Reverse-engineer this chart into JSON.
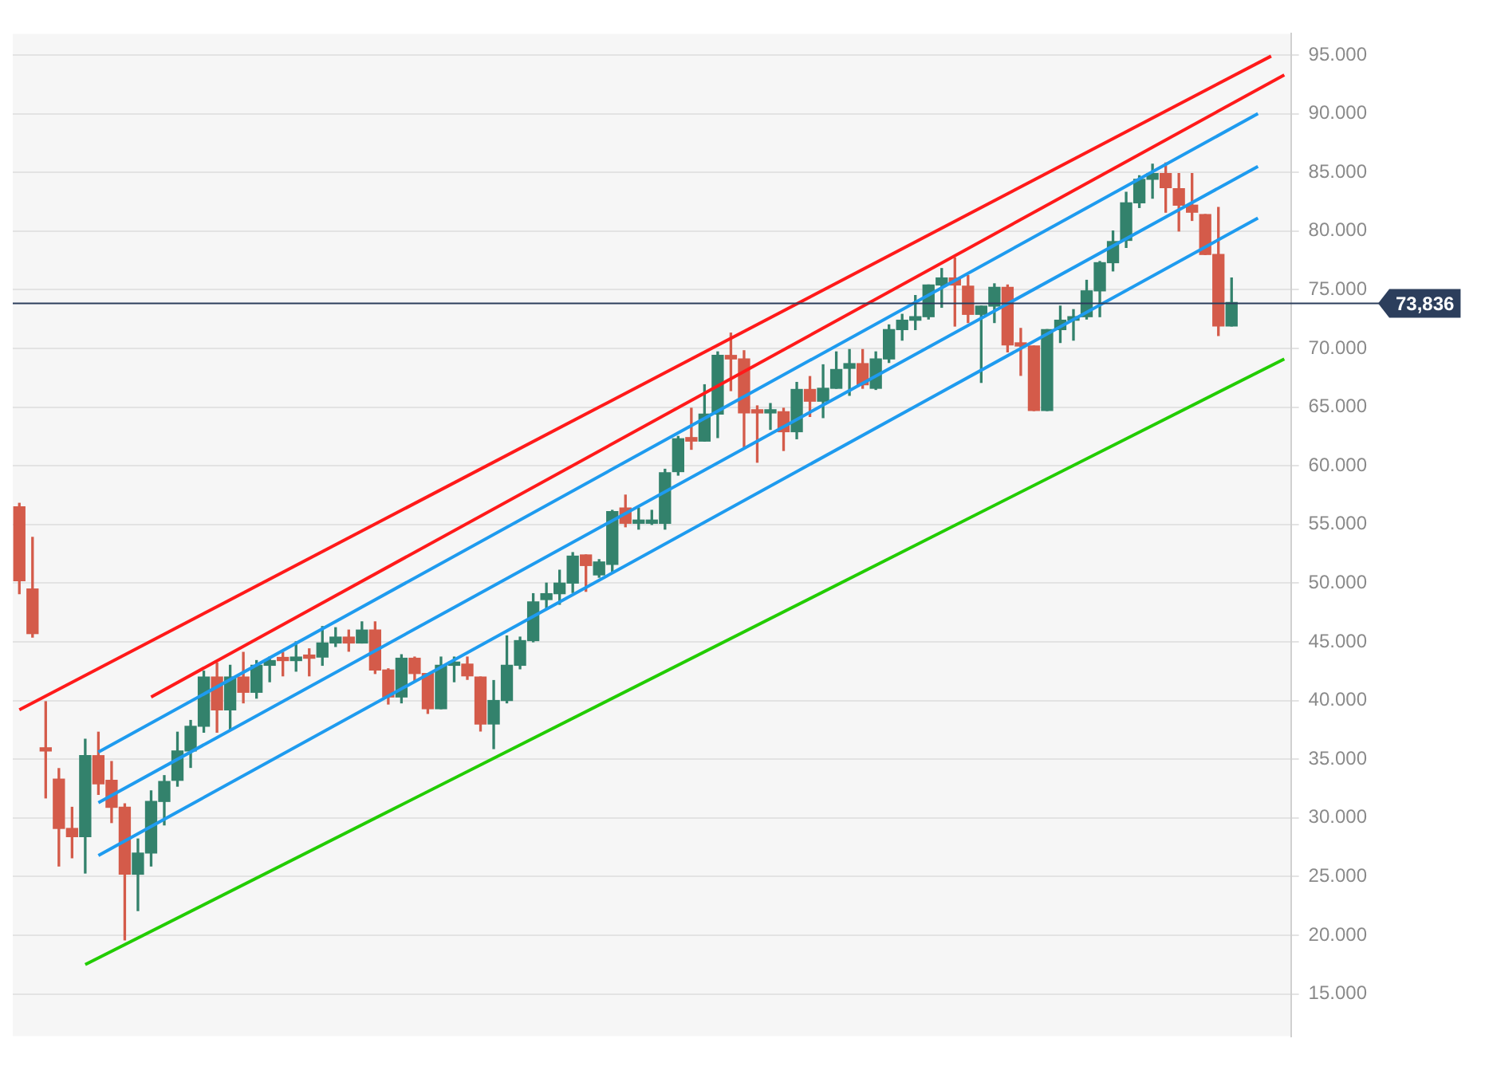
{
  "chart_data": {
    "type": "candlestick",
    "categories": [
      null,
      null,
      null,
      null,
      null,
      null,
      null,
      null,
      null,
      null,
      null,
      null,
      null,
      null,
      null,
      null,
      null,
      null,
      null,
      null,
      null,
      null,
      null,
      null,
      null,
      null,
      null,
      null,
      null,
      null,
      null,
      null,
      null,
      null,
      null,
      null,
      null,
      null,
      null,
      null,
      null,
      null,
      null,
      null,
      null,
      null,
      null,
      null,
      null,
      null,
      null,
      null,
      null,
      null,
      null,
      null,
      null,
      null,
      null,
      null,
      null,
      null,
      null,
      null,
      null,
      null,
      null,
      null,
      null,
      null,
      null,
      null,
      null,
      null,
      null,
      null,
      null,
      null,
      null,
      null,
      null,
      null,
      null,
      null,
      null,
      null,
      null,
      null,
      null,
      null,
      null,
      null,
      null,
      null,
      null,
      null,
      null
    ],
    "ohlc": [
      [
        56.5,
        56.8,
        49.1,
        50.2
      ],
      [
        49.5,
        53.9,
        45.4,
        45.7
      ],
      [
        35.9,
        39.9,
        31.7,
        35.7
      ],
      [
        33.3,
        34.2,
        25.9,
        29.1
      ],
      [
        29.1,
        30.9,
        26.6,
        28.4
      ],
      [
        28.4,
        36.7,
        25.3,
        35.3
      ],
      [
        35.3,
        37.3,
        32.0,
        32.9
      ],
      [
        33.2,
        34.8,
        29.6,
        30.9
      ],
      [
        30.9,
        31.2,
        19.6,
        25.2
      ],
      [
        25.2,
        28.2,
        22.1,
        27.0
      ],
      [
        27.0,
        32.3,
        25.9,
        31.4
      ],
      [
        31.4,
        33.6,
        29.4,
        33.1
      ],
      [
        33.2,
        37.3,
        32.7,
        35.7
      ],
      [
        35.7,
        38.3,
        34.3,
        37.8
      ],
      [
        37.8,
        42.5,
        37.3,
        42.0
      ],
      [
        42.0,
        43.2,
        37.3,
        39.2
      ],
      [
        39.2,
        43.0,
        37.5,
        42.0
      ],
      [
        42.0,
        44.1,
        39.8,
        40.7
      ],
      [
        40.7,
        43.4,
        40.2,
        43.0
      ],
      [
        43.0,
        43.7,
        41.6,
        43.4
      ],
      [
        43.5,
        44.1,
        42.1,
        43.4
      ],
      [
        43.4,
        45.0,
        42.5,
        43.7
      ],
      [
        43.7,
        44.4,
        42.1,
        43.6
      ],
      [
        43.7,
        46.3,
        43.0,
        44.9
      ],
      [
        44.9,
        46.2,
        44.6,
        45.4
      ],
      [
        45.4,
        46.0,
        44.2,
        44.9
      ],
      [
        44.9,
        46.7,
        44.9,
        46.0
      ],
      [
        46.0,
        46.7,
        42.3,
        42.6
      ],
      [
        42.6,
        42.7,
        39.7,
        40.3
      ],
      [
        40.3,
        43.9,
        39.8,
        43.6
      ],
      [
        43.6,
        43.7,
        41.7,
        42.3
      ],
      [
        42.3,
        42.3,
        38.9,
        39.3
      ],
      [
        39.3,
        43.7,
        39.3,
        43.0
      ],
      [
        43.0,
        43.7,
        41.6,
        43.1
      ],
      [
        43.1,
        43.7,
        41.8,
        42.1
      ],
      [
        42.0,
        42.0,
        37.4,
        38.0
      ],
      [
        38.0,
        41.7,
        35.9,
        40.0
      ],
      [
        40.0,
        45.5,
        39.8,
        43.0
      ],
      [
        43.0,
        45.4,
        42.7,
        45.1
      ],
      [
        45.1,
        49.1,
        45.0,
        48.4
      ],
      [
        48.6,
        50.0,
        47.9,
        49.1
      ],
      [
        49.1,
        51.1,
        48.2,
        50.0
      ],
      [
        50.0,
        52.6,
        49.2,
        52.3
      ],
      [
        52.4,
        52.4,
        49.3,
        51.5
      ],
      [
        50.7,
        52.0,
        50.5,
        51.8
      ],
      [
        51.6,
        56.2,
        51.0,
        56.1
      ],
      [
        56.4,
        57.5,
        54.8,
        55.1
      ],
      [
        55.1,
        56.4,
        54.6,
        55.3
      ],
      [
        55.1,
        56.2,
        55.0,
        55.2
      ],
      [
        55.1,
        59.7,
        54.6,
        59.4
      ],
      [
        59.5,
        62.5,
        59.2,
        62.3
      ],
      [
        62.4,
        64.9,
        61.4,
        62.1
      ],
      [
        62.1,
        66.9,
        62.1,
        64.4
      ],
      [
        64.4,
        69.7,
        62.4,
        69.4
      ],
      [
        69.4,
        71.3,
        66.4,
        69.1
      ],
      [
        69.1,
        69.8,
        61.6,
        64.5
      ],
      [
        64.6,
        65.1,
        60.3,
        64.5
      ],
      [
        64.5,
        65.3,
        63.1,
        64.6
      ],
      [
        64.6,
        64.9,
        61.3,
        62.9
      ],
      [
        62.9,
        67.1,
        62.3,
        66.5
      ],
      [
        66.5,
        67.6,
        64.2,
        65.5
      ],
      [
        65.5,
        68.6,
        64.1,
        66.6
      ],
      [
        66.6,
        69.7,
        66.6,
        68.2
      ],
      [
        68.3,
        69.9,
        66.0,
        68.7
      ],
      [
        68.7,
        69.9,
        66.6,
        66.9
      ],
      [
        66.6,
        69.7,
        66.5,
        69.1
      ],
      [
        69.1,
        72.0,
        68.8,
        71.6
      ],
      [
        71.6,
        72.9,
        70.7,
        72.4
      ],
      [
        72.4,
        74.5,
        71.6,
        72.7
      ],
      [
        72.7,
        75.4,
        72.5,
        75.4
      ],
      [
        75.4,
        76.8,
        73.5,
        76.0
      ],
      [
        76.0,
        77.7,
        71.9,
        75.4
      ],
      [
        75.3,
        76.2,
        72.2,
        72.9
      ],
      [
        72.9,
        73.6,
        67.1,
        73.6
      ],
      [
        73.6,
        75.5,
        72.2,
        75.2
      ],
      [
        75.2,
        75.4,
        69.7,
        70.3
      ],
      [
        70.3,
        71.7,
        67.7,
        70.2
      ],
      [
        70.2,
        70.2,
        64.7,
        64.7
      ],
      [
        64.7,
        71.6,
        64.7,
        71.6
      ],
      [
        71.6,
        73.6,
        70.5,
        72.4
      ],
      [
        72.4,
        73.3,
        70.7,
        72.7
      ],
      [
        72.7,
        75.8,
        72.5,
        74.9
      ],
      [
        74.9,
        77.4,
        72.7,
        77.3
      ],
      [
        77.3,
        80.0,
        76.6,
        79.1
      ],
      [
        79.2,
        83.3,
        78.6,
        82.4
      ],
      [
        82.4,
        84.7,
        82.0,
        84.4
      ],
      [
        84.4,
        85.7,
        82.8,
        84.9
      ],
      [
        84.9,
        85.8,
        81.6,
        83.7
      ],
      [
        83.6,
        84.9,
        80.0,
        82.2
      ],
      [
        82.2,
        84.9,
        80.9,
        81.6
      ],
      [
        81.4,
        81.4,
        78.0,
        78.0
      ],
      [
        78.0,
        82.0,
        71.1,
        71.9
      ],
      [
        71.9,
        76.0,
        71.9,
        73.9
      ],
      null,
      null,
      null,
      null
    ],
    "colors": [
      "#d45b4a",
      "#d45b4a",
      "#d45b4a",
      "#d45b4a",
      "#d45b4a",
      "#33826c",
      "#d45b4a",
      "#d45b4a",
      "#d45b4a",
      "#33826c",
      "#33826c",
      "#33826c",
      "#33826c",
      "#33826c",
      "#33826c",
      "#d45b4a",
      "#33826c",
      "#d45b4a",
      "#33826c",
      "#33826c",
      "#d45b4a",
      "#33826c",
      "#d45b4a",
      "#33826c",
      "#33826c",
      "#d45b4a",
      "#33826c",
      "#d45b4a",
      "#d45b4a",
      "#33826c",
      "#d45b4a",
      "#d45b4a",
      "#33826c",
      "#33826c",
      "#d45b4a",
      "#d45b4a",
      "#33826c",
      "#33826c",
      "#33826c",
      "#33826c",
      "#33826c",
      "#33826c",
      "#33826c",
      "#d45b4a",
      "#33826c",
      "#33826c",
      "#d45b4a",
      "#33826c",
      "#33826c",
      "#33826c",
      "#33826c",
      "#d45b4a",
      "#33826c",
      "#33826c",
      "#d45b4a",
      "#d45b4a",
      "#d45b4a",
      "#33826c",
      "#d45b4a",
      "#33826c",
      "#d45b4a",
      "#33826c",
      "#33826c",
      "#33826c",
      "#d45b4a",
      "#33826c",
      "#33826c",
      "#33826c",
      "#33826c",
      "#33826c",
      "#33826c",
      "#d45b4a",
      "#d45b4a",
      "#33826c",
      "#33826c",
      "#d45b4a",
      "#d45b4a",
      "#d45b4a",
      "#33826c",
      "#33826c",
      "#33826c",
      "#33826c",
      "#33826c",
      "#33826c",
      "#33826c",
      "#33826c",
      "#33826c",
      "#d45b4a",
      "#d45b4a",
      "#d45b4a",
      "#d45b4a",
      "#d45b4a",
      "#33826c",
      null,
      null,
      null,
      null
    ],
    "series": [
      {
        "type": "line",
        "color": "#ff1a1a",
        "values": [
          39.2,
          null,
          null,
          null,
          null,
          null,
          null,
          null,
          null,
          null,
          null,
          null,
          null,
          null,
          null,
          null,
          null,
          null,
          null,
          null,
          null,
          null,
          null,
          null,
          null,
          null,
          null,
          null,
          null,
          null,
          null,
          null,
          null,
          null,
          null,
          null,
          null,
          null,
          null,
          null,
          null,
          null,
          null,
          null,
          null,
          null,
          null,
          null,
          null,
          null,
          null,
          null,
          null,
          null,
          null,
          null,
          null,
          null,
          null,
          null,
          null,
          null,
          null,
          null,
          null,
          null,
          null,
          null,
          null,
          null,
          null,
          null,
          null,
          null,
          null,
          null,
          null,
          null,
          null,
          null,
          null,
          null,
          null,
          null,
          null,
          null,
          null,
          null,
          null,
          null,
          null,
          null,
          null,
          null,
          null,
          94.9,
          null
        ]
      },
      {
        "type": "line",
        "color": "#ff1a1a",
        "values": [
          null,
          null,
          null,
          null,
          null,
          null,
          null,
          null,
          null,
          null,
          40.3,
          null,
          null,
          null,
          null,
          null,
          null,
          null,
          null,
          null,
          null,
          null,
          null,
          null,
          null,
          null,
          null,
          null,
          null,
          null,
          null,
          null,
          null,
          null,
          null,
          null,
          null,
          null,
          null,
          null,
          null,
          null,
          null,
          null,
          null,
          null,
          null,
          null,
          null,
          null,
          null,
          null,
          null,
          null,
          null,
          null,
          null,
          null,
          null,
          null,
          null,
          null,
          null,
          null,
          null,
          null,
          null,
          null,
          null,
          null,
          null,
          null,
          null,
          null,
          null,
          null,
          null,
          null,
          null,
          null,
          null,
          null,
          null,
          null,
          null,
          null,
          null,
          null,
          null,
          null,
          null,
          null,
          null,
          null,
          null,
          null,
          93.3
        ]
      },
      {
        "type": "line",
        "color": "#1e9bef",
        "values": [
          null,
          null,
          null,
          null,
          null,
          null,
          35.6,
          null,
          null,
          null,
          null,
          null,
          null,
          null,
          null,
          null,
          null,
          null,
          null,
          null,
          null,
          null,
          null,
          null,
          null,
          null,
          null,
          null,
          null,
          null,
          null,
          null,
          null,
          null,
          null,
          null,
          null,
          null,
          null,
          null,
          null,
          null,
          null,
          null,
          null,
          null,
          null,
          null,
          null,
          null,
          null,
          null,
          null,
          null,
          null,
          null,
          null,
          null,
          null,
          null,
          null,
          null,
          null,
          null,
          null,
          null,
          null,
          null,
          null,
          null,
          null,
          null,
          null,
          null,
          null,
          null,
          null,
          null,
          null,
          null,
          null,
          null,
          null,
          null,
          null,
          null,
          null,
          null,
          null,
          null,
          null,
          null,
          null,
          null,
          90.0,
          null,
          null
        ]
      },
      {
        "type": "line",
        "color": "#1e9bef",
        "values": [
          null,
          null,
          null,
          null,
          null,
          null,
          31.3,
          null,
          null,
          null,
          null,
          null,
          null,
          null,
          null,
          null,
          null,
          null,
          null,
          null,
          null,
          null,
          null,
          null,
          null,
          null,
          null,
          null,
          null,
          null,
          null,
          null,
          null,
          null,
          null,
          null,
          null,
          null,
          null,
          null,
          null,
          null,
          null,
          null,
          null,
          null,
          null,
          null,
          null,
          null,
          null,
          null,
          null,
          null,
          null,
          null,
          null,
          null,
          null,
          null,
          null,
          null,
          null,
          null,
          null,
          null,
          null,
          null,
          null,
          null,
          null,
          null,
          null,
          null,
          null,
          null,
          null,
          null,
          null,
          null,
          null,
          null,
          null,
          null,
          null,
          null,
          null,
          null,
          null,
          null,
          null,
          null,
          null,
          null,
          85.5,
          null,
          null
        ]
      },
      {
        "type": "line",
        "color": "#1e9bef",
        "values": [
          null,
          null,
          null,
          null,
          null,
          null,
          26.8,
          null,
          null,
          null,
          null,
          null,
          null,
          null,
          null,
          null,
          null,
          null,
          null,
          null,
          null,
          null,
          null,
          null,
          null,
          null,
          null,
          null,
          null,
          null,
          null,
          null,
          null,
          null,
          null,
          null,
          null,
          null,
          null,
          null,
          null,
          null,
          null,
          null,
          null,
          null,
          null,
          null,
          null,
          null,
          null,
          null,
          null,
          null,
          null,
          null,
          null,
          null,
          null,
          null,
          null,
          null,
          null,
          null,
          null,
          null,
          null,
          null,
          null,
          null,
          null,
          null,
          null,
          null,
          null,
          null,
          null,
          null,
          null,
          null,
          null,
          null,
          null,
          null,
          null,
          null,
          null,
          null,
          null,
          null,
          null,
          null,
          null,
          null,
          81.1,
          null,
          null
        ]
      },
      {
        "type": "line",
        "color": "#22cc00",
        "values": [
          null,
          null,
          null,
          null,
          null,
          17.5,
          null,
          null,
          null,
          null,
          null,
          null,
          null,
          null,
          null,
          null,
          null,
          null,
          null,
          null,
          null,
          null,
          null,
          null,
          null,
          null,
          null,
          null,
          null,
          null,
          null,
          null,
          null,
          null,
          null,
          null,
          null,
          null,
          null,
          null,
          null,
          null,
          null,
          null,
          null,
          null,
          null,
          null,
          null,
          null,
          null,
          null,
          null,
          null,
          null,
          null,
          null,
          null,
          null,
          null,
          null,
          null,
          null,
          null,
          null,
          null,
          null,
          null,
          null,
          null,
          null,
          null,
          null,
          null,
          null,
          null,
          null,
          null,
          null,
          null,
          null,
          null,
          null,
          null,
          null,
          null,
          null,
          null,
          null,
          null,
          null,
          null,
          null,
          null,
          null,
          null,
          69.1
        ]
      }
    ],
    "ylim": [
      11.4,
      96.8
    ],
    "yticks": [
      {
        "value": 15,
        "label": "15.000"
      },
      {
        "value": 20,
        "label": "20.000"
      },
      {
        "value": 25,
        "label": "25.000"
      },
      {
        "value": 30,
        "label": "30.000"
      },
      {
        "value": 35,
        "label": "35.000"
      },
      {
        "value": 40,
        "label": "40.000"
      },
      {
        "value": 45,
        "label": "45.000"
      },
      {
        "value": 50,
        "label": "50.000"
      },
      {
        "value": 55,
        "label": "55.000"
      },
      {
        "value": 60,
        "label": "60.000"
      },
      {
        "value": 65,
        "label": "65.000"
      },
      {
        "value": 70,
        "label": "70.000"
      },
      {
        "value": 75,
        "label": "75.000"
      },
      {
        "value": 80,
        "label": "80.000"
      },
      {
        "value": 85,
        "label": "85.000"
      },
      {
        "value": 90,
        "label": "90.000"
      },
      {
        "value": 95,
        "label": "95.000"
      }
    ],
    "grid": "y",
    "tick_labels": "y",
    "ref_lines": [
      {
        "axis": "y",
        "value": 73.836,
        "label": "73,836",
        "color": "#2c3e5c"
      }
    ]
  }
}
